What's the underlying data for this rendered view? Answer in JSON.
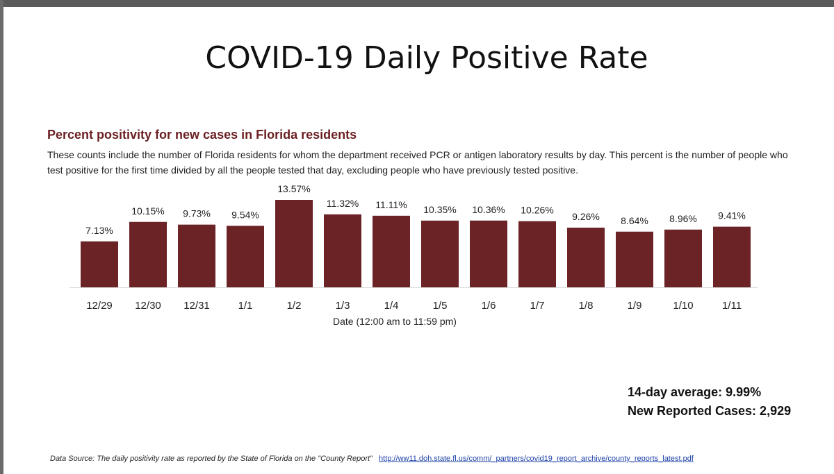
{
  "slide": {
    "title": "COVID-19 Daily Positive Rate"
  },
  "chart_data": {
    "type": "bar",
    "title": "Percent positivity for new cases in Florida residents",
    "subtitle": "These counts include the number of Florida residents for whom the department received PCR or antigen laboratory results by day. This percent is the number of people who test positive for the first time divided by all the people tested that day, excluding people who have previously tested positive.",
    "xlabel": "Date (12:00 am to 11:59 pm)",
    "ylabel": "",
    "categories": [
      "12/29",
      "12/30",
      "12/31",
      "1/1",
      "1/2",
      "1/3",
      "1/4",
      "1/5",
      "1/6",
      "1/7",
      "1/8",
      "1/9",
      "1/10",
      "1/11"
    ],
    "values": [
      7.13,
      10.15,
      9.73,
      9.54,
      13.57,
      11.32,
      11.11,
      10.35,
      10.36,
      10.26,
      9.26,
      8.64,
      8.96,
      9.41
    ],
    "data_labels": [
      "7.13%",
      "10.15%",
      "9.73%",
      "9.54%",
      "13.57%",
      "11.32%",
      "11.11%",
      "10.35%",
      "10.36%",
      "10.26%",
      "9.26%",
      "8.64%",
      "8.96%",
      "9.41%"
    ],
    "ylim": [
      0,
      14
    ],
    "grid": false,
    "bar_color": "#6b2326"
  },
  "stats": {
    "average": "14-day average: 9.99%",
    "new_cases": "New Reported Cases: 2,929"
  },
  "footer": {
    "source_text": "Data Source: The daily positivity rate as reported by the State of Florida on the \"County Report\"",
    "link_text": "http://ww11.doh.state.fl.us/comm/_partners/covid19_report_archive/county_reports_latest.pdf"
  }
}
